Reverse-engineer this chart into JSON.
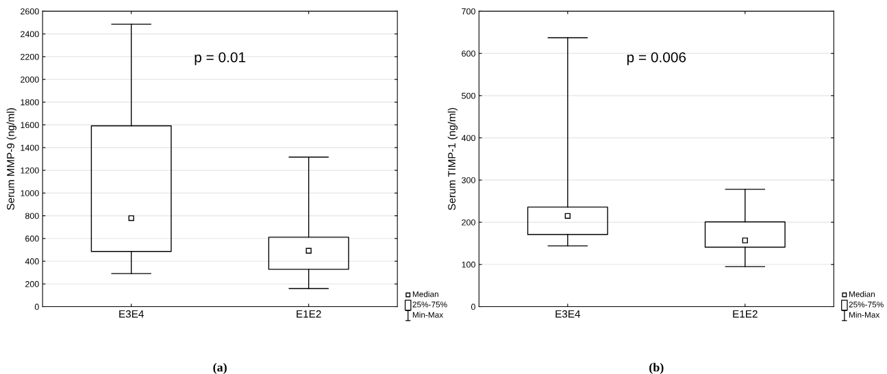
{
  "chart_data": [
    {
      "type": "box",
      "ylabel": "Serum MMP-9 (ng/ml)",
      "categories": [
        "E3E4",
        "E1E2"
      ],
      "boxes": [
        {
          "low": 291,
          "q1": 486,
          "median": 779,
          "q3": 1592,
          "high": 2486
        },
        {
          "low": 160,
          "q1": 329,
          "median": 492,
          "q3": 612,
          "high": 1316
        }
      ],
      "ylim": [
        0,
        2600
      ],
      "yticks": [
        0,
        200,
        400,
        600,
        800,
        1000,
        1200,
        1400,
        1600,
        1800,
        2000,
        2200,
        2400,
        2600
      ],
      "grid": "y",
      "annotations": [
        "p = 0.01",
        "(a)",
        "Median",
        "25%-75%",
        "Min-Max"
      ]
    },
    {
      "type": "box",
      "ylabel": "Serum TIMP-1 (ng/ml)",
      "categories": [
        "E3E4",
        "E1E2"
      ],
      "boxes": [
        {
          "low": 144,
          "q1": 171,
          "median": 215,
          "q3": 236,
          "high": 637
        },
        {
          "low": 95,
          "q1": 141,
          "median": 157,
          "q3": 201,
          "high": 278
        }
      ],
      "ylim": [
        0,
        700
      ],
      "yticks": [
        0,
        100,
        200,
        300,
        400,
        500,
        600,
        700
      ],
      "grid": "y",
      "annotations": [
        "p = 0.006",
        "(b)",
        "Median",
        "25%-75%",
        "Min-Max"
      ]
    }
  ]
}
